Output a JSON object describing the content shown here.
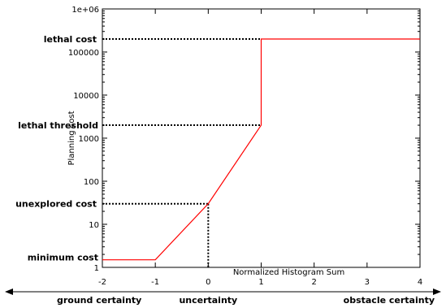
{
  "chart_data": {
    "type": "line",
    "xlabel": "Normalized Histogram Sum",
    "ylabel": "Planning cost",
    "xlim": [
      -2,
      4
    ],
    "ylim": [
      1,
      1000000
    ],
    "yscale": "log",
    "x_ticks": [
      "-2",
      "-1",
      "0",
      "1",
      "2",
      "3",
      "4"
    ],
    "y_ticks": [
      "1",
      "10",
      "100",
      "1000",
      "10000",
      "100000",
      "1e+06"
    ],
    "series": [
      {
        "color": "#ff0000",
        "points": [
          {
            "x": -2,
            "y": 1.5
          },
          {
            "x": -1,
            "y": 1.5
          },
          {
            "x": 0,
            "y": 30
          },
          {
            "x": 1,
            "y": 2000
          },
          {
            "x": 1,
            "y": 200000
          },
          {
            "x": 4,
            "y": 200000
          }
        ]
      }
    ],
    "annotations": {
      "lethal_cost": {
        "label": "lethal cost",
        "y": 200000,
        "x_end": 1
      },
      "lethal_threshold": {
        "label": "lethal threshold",
        "y": 2000,
        "x_end": 1
      },
      "unexplored_cost": {
        "label": "unexplored cost",
        "y": 30,
        "x_end": 0
      },
      "minimum_cost": {
        "label": "minimum cost"
      }
    },
    "bottom_axis": {
      "left_label": "ground certainty",
      "center_label": "uncertainty",
      "right_label": "obstacle certainty"
    }
  }
}
